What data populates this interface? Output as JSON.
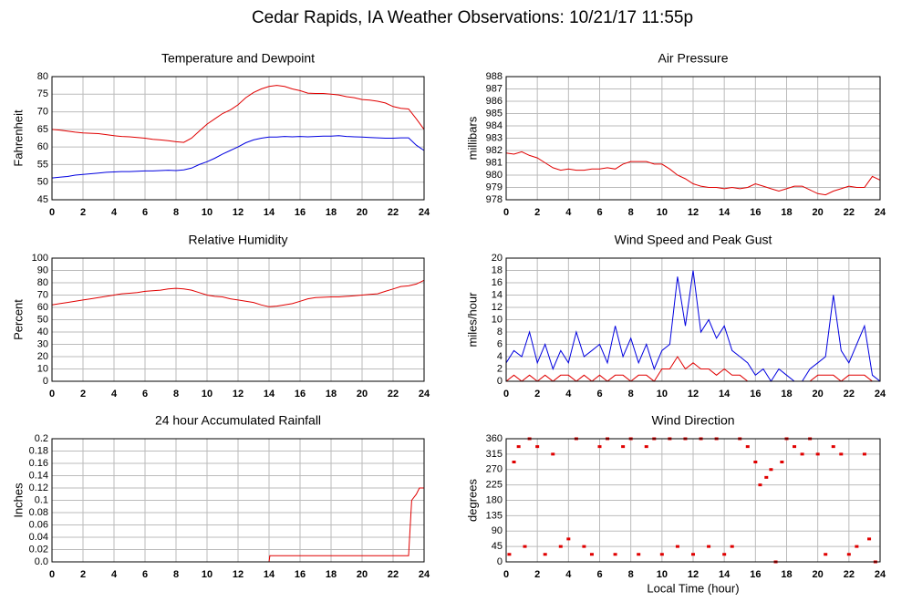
{
  "title": "Cedar Rapids, IA Weather Observations: 10/21/17 11:55p",
  "xlabel": "Local Time (hour)",
  "chart_data": [
    {
      "type": "line",
      "title": "Temperature and Dewpoint",
      "ylabel": "Fahrenheit",
      "x": [
        0,
        0.5,
        1,
        1.5,
        2,
        2.5,
        3,
        3.5,
        4,
        4.5,
        5,
        5.5,
        6,
        6.5,
        7,
        7.5,
        8,
        8.5,
        9,
        9.5,
        10,
        10.5,
        11,
        11.5,
        12,
        12.5,
        13,
        13.5,
        14,
        14.5,
        15,
        15.5,
        16,
        16.5,
        17,
        17.5,
        18,
        18.5,
        19,
        19.5,
        20,
        20.5,
        21,
        21.5,
        22,
        22.5,
        23,
        23.5,
        24
      ],
      "series": [
        {
          "color": "#e00000",
          "values": [
            65,
            64.8,
            64.5,
            64.2,
            64,
            63.9,
            63.8,
            63.5,
            63.2,
            63,
            62.9,
            62.7,
            62.5,
            62.2,
            62,
            61.8,
            61.5,
            61.3,
            62.5,
            64.5,
            66.5,
            68,
            69.5,
            70.5,
            72,
            74,
            75.5,
            76.5,
            77.2,
            77.5,
            77.2,
            76.5,
            76,
            75.3,
            75.2,
            75.2,
            75,
            74.8,
            74.3,
            74,
            73.5,
            73.3,
            73,
            72.5,
            71.5,
            71,
            70.8,
            68,
            65
          ]
        },
        {
          "color": "#0000e0",
          "values": [
            51.2,
            51.4,
            51.6,
            52,
            52.2,
            52.4,
            52.6,
            52.8,
            52.9,
            53,
            53,
            53.1,
            53.2,
            53.2,
            53.3,
            53.4,
            53.3,
            53.5,
            54,
            55,
            55.8,
            56.8,
            58,
            59,
            60,
            61.2,
            62,
            62.5,
            62.8,
            62.8,
            63,
            62.9,
            63,
            62.9,
            63,
            63.1,
            63.1,
            63.2,
            63,
            62.9,
            62.8,
            62.7,
            62.6,
            62.5,
            62.5,
            62.6,
            62.6,
            60.5,
            59
          ]
        }
      ],
      "xlim": [
        0,
        24
      ],
      "xticks": [
        0,
        2,
        4,
        6,
        8,
        10,
        12,
        14,
        16,
        18,
        20,
        22,
        24
      ],
      "ylim": [
        45,
        80
      ],
      "yticks": [
        45,
        50,
        55,
        60,
        65,
        70,
        75,
        80
      ],
      "grid": true
    },
    {
      "type": "line",
      "title": "Air Pressure",
      "ylabel": "millibars",
      "x": [
        0,
        0.5,
        1,
        1.5,
        2,
        2.5,
        3,
        3.5,
        4,
        4.5,
        5,
        5.5,
        6,
        6.5,
        7,
        7.5,
        8,
        8.5,
        9,
        9.5,
        10,
        10.5,
        11,
        11.5,
        12,
        12.5,
        13,
        13.5,
        14,
        14.5,
        15,
        15.5,
        16,
        16.5,
        17,
        17.5,
        18,
        18.5,
        19,
        19.5,
        20,
        20.5,
        21,
        21.5,
        22,
        22.5,
        23,
        23.5,
        24
      ],
      "series": [
        {
          "color": "#e00000",
          "values": [
            981.8,
            981.7,
            981.9,
            981.6,
            981.4,
            981,
            980.6,
            980.4,
            980.5,
            980.4,
            980.4,
            980.5,
            980.5,
            980.6,
            980.5,
            980.9,
            981.1,
            981.1,
            981.1,
            980.9,
            980.9,
            980.5,
            980,
            979.7,
            979.3,
            979.1,
            979,
            979,
            978.9,
            979,
            978.9,
            979,
            979.3,
            979.1,
            978.9,
            978.7,
            978.9,
            979.1,
            979.1,
            978.8,
            978.5,
            978.4,
            978.7,
            978.9,
            979.1,
            979,
            979,
            979.9,
            979.6
          ]
        }
      ],
      "xlim": [
        0,
        24
      ],
      "xticks": [
        0,
        2,
        4,
        6,
        8,
        10,
        12,
        14,
        16,
        18,
        20,
        22,
        24
      ],
      "ylim": [
        978,
        988
      ],
      "yticks": [
        978,
        979,
        980,
        981,
        982,
        983,
        984,
        985,
        986,
        987,
        988
      ],
      "grid": true
    },
    {
      "type": "line",
      "title": "Relative Humidity",
      "ylabel": "Percent",
      "x": [
        0,
        0.5,
        1,
        1.5,
        2,
        2.5,
        3,
        3.5,
        4,
        4.5,
        5,
        5.5,
        6,
        6.5,
        7,
        7.5,
        8,
        8.5,
        9,
        9.5,
        10,
        10.5,
        11,
        11.5,
        12,
        12.5,
        13,
        13.5,
        14,
        14.5,
        15,
        15.5,
        16,
        16.5,
        17,
        17.5,
        18,
        18.5,
        19,
        19.5,
        20,
        20.5,
        21,
        21.5,
        22,
        22.5,
        23,
        23.5,
        24
      ],
      "series": [
        {
          "color": "#e00000",
          "values": [
            62,
            63,
            64,
            65,
            66,
            67,
            68,
            69,
            70,
            71,
            71.5,
            72,
            73,
            73.5,
            74,
            75,
            75.5,
            75,
            74,
            72,
            70,
            69,
            68.5,
            67,
            66,
            65,
            64,
            62,
            60.5,
            61,
            62,
            63,
            65,
            67,
            68,
            68.2,
            68.5,
            68.5,
            69,
            69.5,
            70,
            70.5,
            71,
            73,
            75,
            77,
            77.5,
            79,
            82
          ]
        }
      ],
      "xlim": [
        0,
        24
      ],
      "xticks": [
        0,
        2,
        4,
        6,
        8,
        10,
        12,
        14,
        16,
        18,
        20,
        22,
        24
      ],
      "ylim": [
        0,
        100
      ],
      "yticks": [
        0,
        10,
        20,
        30,
        40,
        50,
        60,
        70,
        80,
        90,
        100
      ],
      "grid": true
    },
    {
      "type": "line",
      "title": "Wind Speed and Peak Gust",
      "ylabel": "miles/hour",
      "x": [
        0,
        0.5,
        1,
        1.5,
        2,
        2.5,
        3,
        3.5,
        4,
        4.5,
        5,
        5.5,
        6,
        6.5,
        7,
        7.5,
        8,
        8.5,
        9,
        9.5,
        10,
        10.5,
        11,
        11.5,
        12,
        12.5,
        13,
        13.5,
        14,
        14.5,
        15,
        15.5,
        16,
        16.5,
        17,
        17.5,
        18,
        18.5,
        19,
        19.5,
        20,
        20.5,
        21,
        21.5,
        22,
        22.5,
        23,
        23.5,
        24
      ],
      "series": [
        {
          "color": "#0000e0",
          "values": [
            3,
            5,
            4,
            8,
            3,
            6,
            2,
            5,
            3,
            8,
            4,
            5,
            6,
            3,
            9,
            4,
            7,
            3,
            6,
            2,
            5,
            6,
            17,
            9,
            18,
            8,
            10,
            7,
            9,
            5,
            4,
            3,
            1,
            2,
            0,
            2,
            1,
            0,
            0,
            2,
            3,
            4,
            14,
            5,
            3,
            6,
            9,
            1,
            0
          ]
        },
        {
          "color": "#e00000",
          "values": [
            0,
            1,
            0,
            1,
            0,
            1,
            0,
            1,
            1,
            0,
            1,
            0,
            1,
            0,
            1,
            1,
            0,
            1,
            1,
            0,
            2,
            2,
            4,
            2,
            3,
            2,
            2,
            1,
            2,
            1,
            1,
            0,
            0,
            0,
            0,
            0,
            0,
            0,
            0,
            0,
            1,
            1,
            1,
            0,
            1,
            1,
            1,
            0,
            0
          ]
        }
      ],
      "xlim": [
        0,
        24
      ],
      "xticks": [
        0,
        2,
        4,
        6,
        8,
        10,
        12,
        14,
        16,
        18,
        20,
        22,
        24
      ],
      "ylim": [
        0,
        20
      ],
      "yticks": [
        0,
        2,
        4,
        6,
        8,
        10,
        12,
        14,
        16,
        18,
        20
      ],
      "grid": true
    },
    {
      "type": "line",
      "title": "24 hour Accumulated Rainfall",
      "ylabel": "Inches",
      "x": [
        0,
        14,
        14.05,
        23,
        23.2,
        23.5,
        23.7,
        24
      ],
      "series": [
        {
          "color": "#e00000",
          "values": [
            0,
            0,
            0.01,
            0.01,
            0.1,
            0.11,
            0.12,
            0.12
          ]
        }
      ],
      "xlim": [
        0,
        24
      ],
      "xticks": [
        0,
        2,
        4,
        6,
        8,
        10,
        12,
        14,
        16,
        18,
        20,
        22,
        24
      ],
      "ylim": [
        0,
        0.2
      ],
      "yticks": [
        {
          "value": 0,
          "label": "0.0"
        },
        0.02,
        0.04,
        0.06,
        0.08,
        0.1,
        0.12,
        0.14,
        0.16,
        0.18,
        0.2
      ],
      "grid": true
    },
    {
      "type": "scatter",
      "title": "Wind Direction",
      "ylabel": "degrees",
      "x": [
        0.2,
        0.5,
        0.8,
        1.2,
        1.5,
        2,
        2.5,
        3,
        3.5,
        4,
        4.5,
        5,
        5.5,
        6,
        6.5,
        7,
        7.5,
        8,
        8.5,
        9,
        9.5,
        10,
        10.5,
        11,
        11.5,
        12,
        12.5,
        13,
        13.5,
        14,
        14.5,
        15,
        15.5,
        16,
        16.3,
        16.7,
        17,
        17.3,
        17.7,
        18,
        18.5,
        19,
        19.5,
        20,
        20.5,
        21,
        21.5,
        22,
        22.5,
        23,
        23.3,
        23.7
      ],
      "series": [
        {
          "color": "#e00000",
          "values": [
            22,
            292,
            337,
            45,
            360,
            337,
            22,
            315,
            45,
            67,
            360,
            45,
            22,
            337,
            360,
            22,
            337,
            360,
            22,
            337,
            360,
            22,
            360,
            45,
            360,
            22,
            360,
            45,
            360,
            22,
            45,
            360,
            337,
            292,
            225,
            247,
            270,
            0,
            292,
            360,
            337,
            315,
            360,
            315,
            22,
            337,
            315,
            22,
            45,
            315,
            67,
            0
          ]
        }
      ],
      "xlim": [
        0,
        24
      ],
      "xticks": [
        0,
        2,
        4,
        6,
        8,
        10,
        12,
        14,
        16,
        18,
        20,
        22,
        24
      ],
      "ylim": [
        0,
        360
      ],
      "yticks": [
        0,
        45,
        90,
        135,
        180,
        225,
        270,
        315,
        360
      ],
      "grid": true
    }
  ]
}
